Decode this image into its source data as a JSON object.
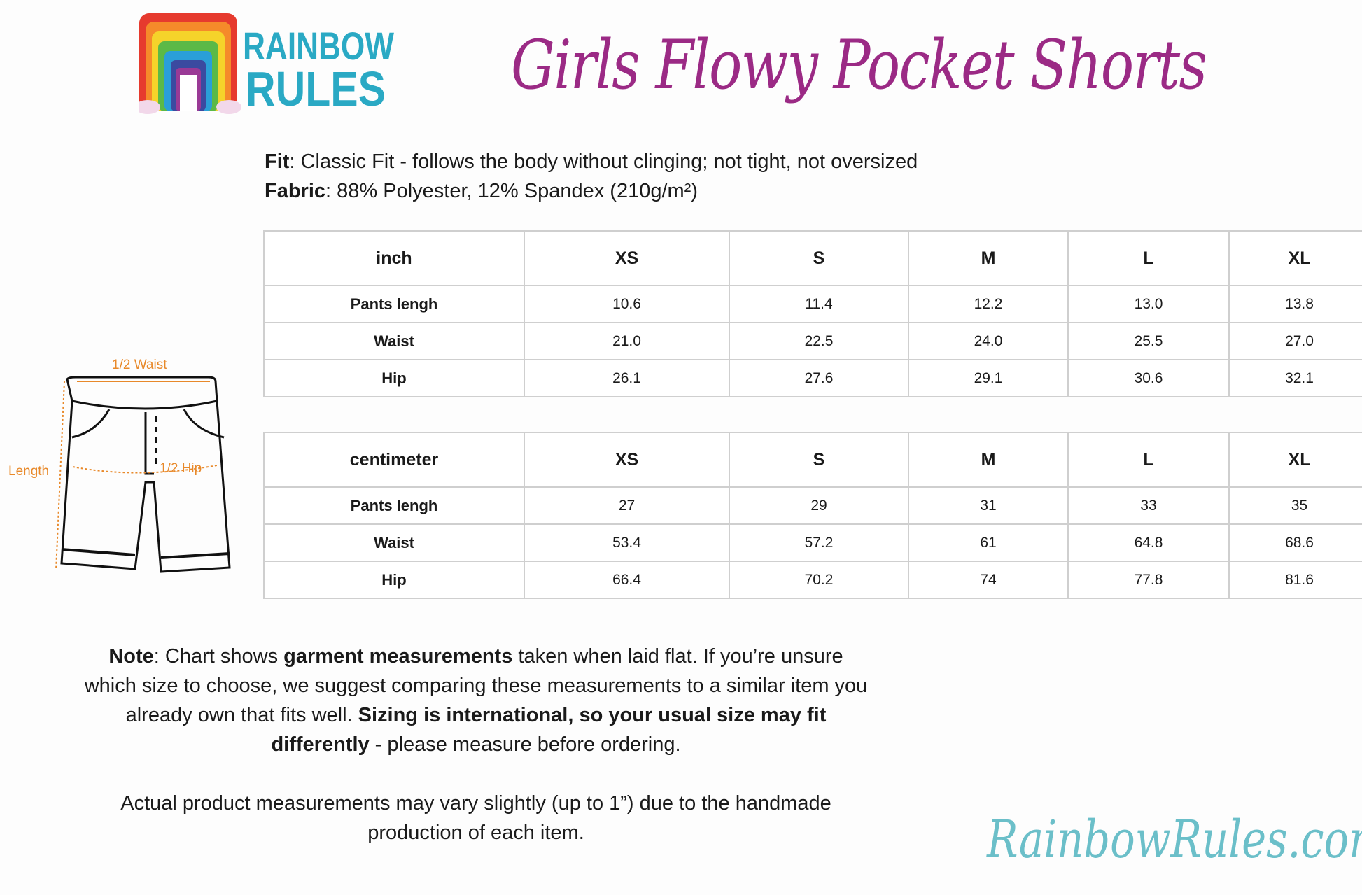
{
  "brand": {
    "logo_text": "RAINBOW RULES",
    "site": "RainbowRules.com"
  },
  "title": "Girls Flowy Pocket Shorts",
  "info": {
    "fit_label": "Fit",
    "fit_text": ": Classic Fit - follows the body without clinging; not tight, not oversized",
    "fabric_label": "Fabric",
    "fabric_text": ": 88% Polyester, 12% Spandex (210g/m²)"
  },
  "diagram": {
    "waist": "1/2 Waist",
    "hip": "1/2 Hip",
    "length": "Length"
  },
  "tables": [
    {
      "unit": "inch",
      "sizes": [
        "XS",
        "S",
        "M",
        "L",
        "XL"
      ],
      "rows": [
        {
          "label": "Pants lengh",
          "values": [
            "10.6",
            "11.4",
            "12.2",
            "13.0",
            "13.8"
          ]
        },
        {
          "label": "Waist",
          "values": [
            "21.0",
            "22.5",
            "24.0",
            "25.5",
            "27.0"
          ]
        },
        {
          "label": "Hip",
          "values": [
            "26.1",
            "27.6",
            "29.1",
            "30.6",
            "32.1"
          ]
        }
      ]
    },
    {
      "unit": "centimeter",
      "sizes": [
        "XS",
        "S",
        "M",
        "L",
        "XL"
      ],
      "rows": [
        {
          "label": "Pants lengh",
          "values": [
            "27",
            "29",
            "31",
            "33",
            "35"
          ]
        },
        {
          "label": "Waist",
          "values": [
            "53.4",
            "57.2",
            "61",
            "64.8",
            "68.6"
          ]
        },
        {
          "label": "Hip",
          "values": [
            "66.4",
            "70.2",
            "74",
            "77.8",
            "81.6"
          ]
        }
      ]
    }
  ],
  "note": {
    "p1_label": "Note",
    "p1_a": ": Chart shows ",
    "p1_b": "garment measurements",
    "p1_c": " taken when laid flat. If you’re unsure which size to choose, we suggest comparing these measurements to a similar item you already own that fits well. ",
    "p1_d": "Sizing is international, so your usual size may fit differently",
    "p1_e": " - please measure before ordering.",
    "p2": "Actual product measurements may vary slightly (up to 1”) due to the handmade production of each item."
  },
  "colors": {
    "title": "#9b2a85",
    "site": "#6bbfc9",
    "annotation": "#e8892a",
    "logo_text": "#2aa9c4"
  }
}
